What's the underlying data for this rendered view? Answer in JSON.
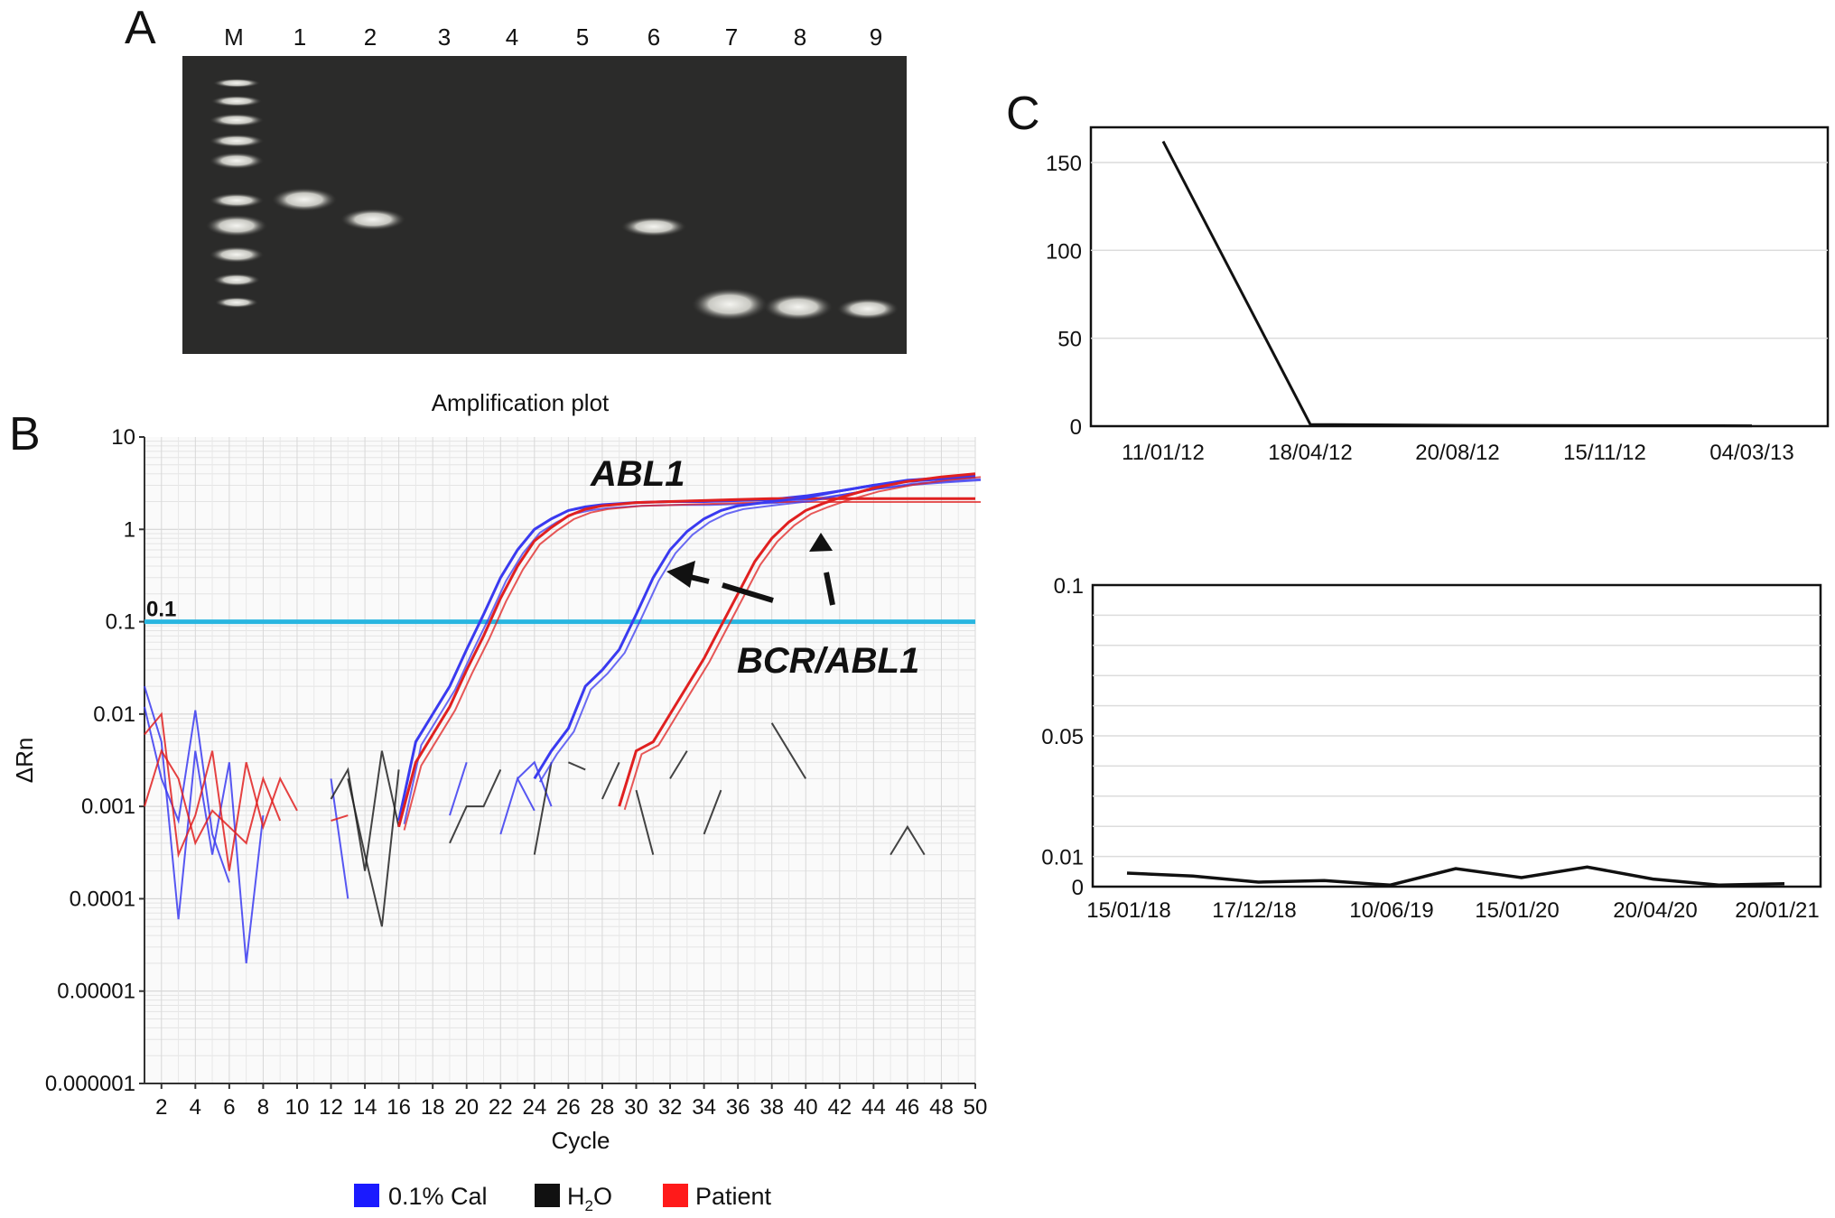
{
  "panel_a": {
    "letter": "A",
    "lane_labels": [
      "M",
      "1",
      "2",
      "3",
      "4",
      "5",
      "6",
      "7",
      "8",
      "9"
    ]
  },
  "chart_data": [
    {
      "panel": "B",
      "type": "line",
      "title": "Amplification plot",
      "xlabel": "Cycle",
      "ylabel": "ΔRn",
      "yscale": "log",
      "ylim": [
        1e-06,
        10
      ],
      "xlim": [
        1,
        50
      ],
      "x_ticks": [
        "2",
        "4",
        "6",
        "8",
        "10",
        "12",
        "14",
        "16",
        "18",
        "20",
        "22",
        "24",
        "26",
        "28",
        "30",
        "32",
        "34",
        "36",
        "38",
        "40",
        "42",
        "44",
        "46",
        "48",
        "50"
      ],
      "y_ticks": [
        "10",
        "1",
        "0.1",
        "0.01",
        "0.001",
        "0.0001",
        "0.00001",
        "0.000001"
      ],
      "grid": true,
      "threshold": {
        "value": 0.1,
        "label": "0.1",
        "color": "#29b6e0"
      },
      "annotations": [
        "ABL1",
        "BCR/ABL1"
      ],
      "legend": {
        "placement": "bottom",
        "entries": [
          {
            "label": "0.1% Cal",
            "color": "#1a1aff"
          },
          {
            "label": "H",
            "sub": "2",
            "label_end": "O",
            "color": "#111111"
          },
          {
            "label": "Patient",
            "color": "#ff1a1a"
          }
        ]
      },
      "series": [
        {
          "name": "0.1% Cal",
          "target": "ABL1",
          "color": "#3a3af0",
          "x": [
            16,
            17,
            18,
            19,
            20,
            21,
            22,
            23,
            24,
            25,
            26,
            27,
            28,
            30,
            32,
            34,
            36,
            38,
            40,
            42,
            44,
            46,
            48,
            50
          ],
          "y": [
            0.0007,
            0.005,
            0.01,
            0.02,
            0.05,
            0.12,
            0.3,
            0.6,
            1.0,
            1.3,
            1.6,
            1.75,
            1.85,
            1.95,
            2.0,
            2.0,
            2.05,
            2.1,
            2.3,
            2.6,
            3.0,
            3.3,
            3.5,
            3.7
          ]
        },
        {
          "name": "Patient",
          "target": "ABL1",
          "color": "#e02020",
          "x": [
            16,
            17,
            18,
            19,
            20,
            21,
            22,
            23,
            24,
            25,
            26,
            27,
            28,
            30,
            32,
            34,
            36,
            38,
            40,
            42,
            44,
            46,
            48,
            50
          ],
          "y": [
            0.0006,
            0.003,
            0.006,
            0.012,
            0.03,
            0.07,
            0.18,
            0.4,
            0.75,
            1.05,
            1.4,
            1.65,
            1.8,
            1.95,
            2.0,
            2.05,
            2.1,
            2.15,
            2.15,
            2.15,
            2.15,
            2.15,
            2.15,
            2.15
          ]
        },
        {
          "name": "0.1% Cal",
          "target": "BCR/ABL1",
          "color": "#3a3af0",
          "x": [
            24,
            25,
            26,
            27,
            28,
            29,
            30,
            31,
            32,
            33,
            34,
            35,
            36,
            38,
            40,
            42,
            44,
            46,
            48,
            50
          ],
          "y": [
            0.002,
            0.004,
            0.007,
            0.02,
            0.03,
            0.05,
            0.12,
            0.3,
            0.6,
            0.95,
            1.3,
            1.6,
            1.8,
            2.0,
            2.2,
            2.6,
            3.0,
            3.4,
            3.6,
            3.8
          ]
        },
        {
          "name": "Patient",
          "target": "BCR/ABL1",
          "color": "#e02020",
          "x": [
            29,
            30,
            31,
            32,
            33,
            34,
            35,
            36,
            37,
            38,
            39,
            40,
            41,
            42,
            44,
            46,
            48,
            50
          ],
          "y": [
            0.001,
            0.004,
            0.005,
            0.01,
            0.02,
            0.04,
            0.09,
            0.2,
            0.45,
            0.8,
            1.2,
            1.6,
            1.9,
            2.2,
            2.8,
            3.3,
            3.7,
            4.0
          ]
        }
      ]
    },
    {
      "panel": "C",
      "type": "line",
      "x": [
        "11/01/12",
        "18/04/12",
        "20/08/12",
        "15/11/12",
        "04/03/13"
      ],
      "y": [
        162,
        1,
        0.5,
        0.3,
        0.2
      ],
      "ylim": [
        0,
        170
      ],
      "y_ticks": [
        "0",
        "50",
        "100",
        "150"
      ],
      "grid": true
    },
    {
      "panel": "C (lower)",
      "type": "line",
      "x_tick_labels": [
        "15/01/18",
        "17/12/18",
        "10/06/19",
        "15/01/20",
        "20/04/20",
        "20/01/21"
      ],
      "values": [
        0.0045,
        0.0035,
        0.0015,
        0.002,
        0.0005,
        0.006,
        0.003,
        0.0065,
        0.0025,
        0.0005,
        0.001
      ],
      "ylim": [
        0,
        0.1
      ],
      "y_ticks": [
        "0",
        "0.01",
        "0.05",
        "0.1"
      ],
      "grid": true
    }
  ],
  "panel_letters": {
    "b": "B",
    "c": "C"
  }
}
